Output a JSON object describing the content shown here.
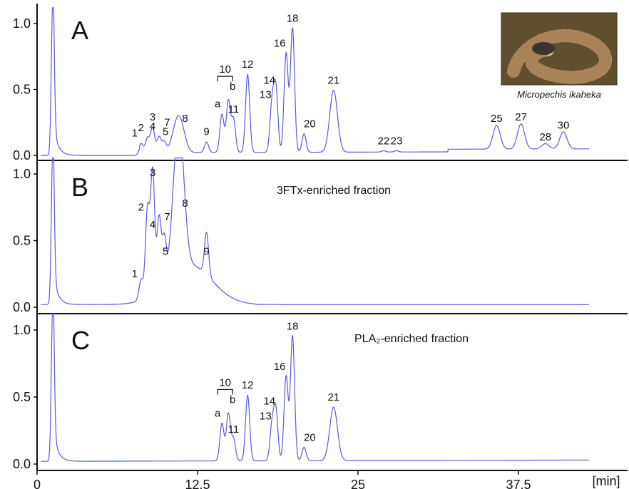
{
  "chart_data": {
    "type": "line",
    "x_unit_label": "[min]",
    "x_ticks": [
      0,
      12.5,
      25,
      37.5
    ],
    "x_tick_labels": [
      "0",
      "12.5",
      "25",
      "37.5"
    ],
    "xlim": [
      0,
      46
    ],
    "y_tick_labels": [
      "0.0",
      "0.5",
      "1.0"
    ],
    "ylim": [
      0,
      1.0
    ],
    "line_color": "#5a5ae6",
    "panels": [
      {
        "letter": "A",
        "caption": "",
        "photo_caption": "Micropechis ikaheka",
        "peaks": [
          {
            "label": "1",
            "x": 8.1,
            "y": 0.09
          },
          {
            "label": "2",
            "x": 8.6,
            "y": 0.13
          },
          {
            "label": "3",
            "x": 9.0,
            "y": 0.21
          },
          {
            "label": "4",
            "x": 9.5,
            "y": 0.14
          },
          {
            "label": "5",
            "x": 9.9,
            "y": 0.1
          },
          {
            "label": "7",
            "x": 10.8,
            "y": 0.17
          },
          {
            "label": "8",
            "x": 11.2,
            "y": 0.2
          },
          {
            "label": "9",
            "x": 13.2,
            "y": 0.1
          },
          {
            "label": "a",
            "x": 14.4,
            "y": 0.31
          },
          {
            "label": "b",
            "x": 14.9,
            "y": 0.41
          },
          {
            "label": "11",
            "x": 15.3,
            "y": 0.27
          },
          {
            "label": "12",
            "x": 16.4,
            "y": 0.61
          },
          {
            "label": "13",
            "x": 18.3,
            "y": 0.38
          },
          {
            "label": "14",
            "x": 18.6,
            "y": 0.49
          },
          {
            "label": "16",
            "x": 19.4,
            "y": 0.77
          },
          {
            "label": "18",
            "x": 19.9,
            "y": 0.96
          },
          {
            "label": "20",
            "x": 20.8,
            "y": 0.16
          },
          {
            "label": "21",
            "x": 23.1,
            "y": 0.49
          },
          {
            "label": "22",
            "x": 27.0,
            "y": 0.03
          },
          {
            "label": "23",
            "x": 28.0,
            "y": 0.03
          },
          {
            "label": "25",
            "x": 35.8,
            "y": 0.2
          },
          {
            "label": "27",
            "x": 37.7,
            "y": 0.21
          },
          {
            "label": "28",
            "x": 39.6,
            "y": 0.06
          },
          {
            "label": "30",
            "x": 41.0,
            "y": 0.15
          }
        ],
        "bracket_label": "10"
      },
      {
        "letter": "B",
        "caption": "3FTx-enriched fraction",
        "peaks": [
          {
            "label": "1",
            "x": 8.1,
            "y": 0.17
          },
          {
            "label": "2",
            "x": 8.6,
            "y": 0.67
          },
          {
            "label": "3",
            "x": 9.0,
            "y": 0.93
          },
          {
            "label": "4",
            "x": 9.5,
            "y": 0.54
          },
          {
            "label": "5",
            "x": 9.9,
            "y": 0.34
          },
          {
            "label": "7",
            "x": 10.8,
            "y": 0.6
          },
          {
            "label": "8",
            "x": 11.2,
            "y": 0.7
          },
          {
            "label": "9",
            "x": 13.2,
            "y": 0.34
          }
        ]
      },
      {
        "letter": "C",
        "caption": "PLA₂-enriched fraction",
        "peaks": [
          {
            "label": "a",
            "x": 14.4,
            "y": 0.3
          },
          {
            "label": "b",
            "x": 14.9,
            "y": 0.37
          },
          {
            "label": "11",
            "x": 15.3,
            "y": 0.18
          },
          {
            "label": "12",
            "x": 16.4,
            "y": 0.51
          },
          {
            "label": "13",
            "x": 18.3,
            "y": 0.28
          },
          {
            "label": "14",
            "x": 18.6,
            "y": 0.39
          },
          {
            "label": "16",
            "x": 19.4,
            "y": 0.65
          },
          {
            "label": "18",
            "x": 19.9,
            "y": 0.95
          },
          {
            "label": "20",
            "x": 20.8,
            "y": 0.12
          },
          {
            "label": "21",
            "x": 23.1,
            "y": 0.42
          }
        ],
        "bracket_label": "10"
      }
    ]
  }
}
